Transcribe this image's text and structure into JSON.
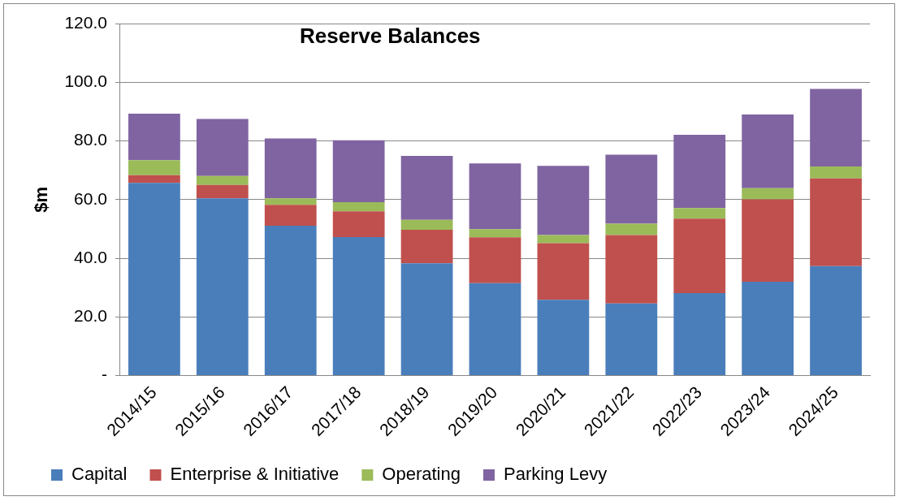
{
  "chart_data": {
    "type": "bar",
    "title": "Reserve Balances",
    "ylabel": "$m",
    "stacked": true,
    "grid": "y",
    "legend": "bottom",
    "categories": [
      "2014/15",
      "2015/16",
      "2016/17",
      "2017/18",
      "2018/19",
      "2019/20",
      "2020/21",
      "2021/22",
      "2022/23",
      "2023/24",
      "2024/25"
    ],
    "series": [
      {
        "name": "Capital",
        "color": "#4a7ebb",
        "values": [
          65.7,
          60.4,
          51.1,
          47.2,
          38.3,
          31.5,
          25.8,
          24.6,
          28.1,
          32.0,
          37.3
        ]
      },
      {
        "name": "Enterprise & Initiative",
        "color": "#c0504d",
        "values": [
          2.6,
          4.6,
          7.1,
          8.8,
          11.4,
          15.6,
          19.3,
          23.3,
          25.4,
          28.1,
          29.9
        ]
      },
      {
        "name": "Operating",
        "color": "#9bbb59",
        "values": [
          5.1,
          3.0,
          2.2,
          3.1,
          3.4,
          2.8,
          2.8,
          3.9,
          3.6,
          3.8,
          4.1
        ]
      },
      {
        "name": "Parking Levy",
        "color": "#8064a2",
        "values": [
          15.9,
          19.5,
          20.4,
          21.1,
          21.8,
          22.4,
          23.6,
          23.5,
          25.0,
          25.1,
          26.4
        ]
      }
    ],
    "ylim": [
      0,
      120
    ],
    "yticks": [
      {
        "value": 0,
        "label": "-"
      },
      {
        "value": 20,
        "label": "20.0"
      },
      {
        "value": 40,
        "label": "40.0"
      },
      {
        "value": 60,
        "label": "60.0"
      },
      {
        "value": 80,
        "label": "80.0"
      },
      {
        "value": 100,
        "label": "100.0"
      },
      {
        "value": 120,
        "label": "120.0"
      }
    ]
  }
}
